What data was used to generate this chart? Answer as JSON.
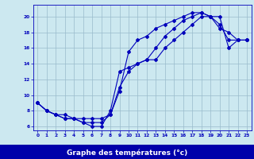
{
  "xlabel": "Graphe des températures (°c)",
  "bg_color": "#cce8f0",
  "plot_bg_color": "#cce8f0",
  "line_color": "#0000bb",
  "grid_color": "#99bbcc",
  "bottom_bar_color": "#0000aa",
  "bottom_text_color": "#ffffff",
  "axis_label_color": "#0000bb",
  "xlim": [
    -0.5,
    23.5
  ],
  "ylim": [
    5.5,
    21.5
  ],
  "xticks": [
    0,
    1,
    2,
    3,
    4,
    5,
    6,
    7,
    8,
    9,
    10,
    11,
    12,
    13,
    14,
    15,
    16,
    17,
    18,
    19,
    20,
    21,
    22,
    23
  ],
  "yticks": [
    6,
    8,
    10,
    12,
    14,
    16,
    18,
    20
  ],
  "series1_x": [
    0,
    1,
    2,
    3,
    4,
    5,
    6,
    7,
    8,
    9,
    10,
    11,
    12,
    13,
    14,
    15,
    16,
    17,
    18,
    19,
    20,
    21,
    22,
    23
  ],
  "series1_y": [
    9,
    8,
    7.5,
    7,
    7,
    6.5,
    6.5,
    6.5,
    7.5,
    10.5,
    15.5,
    17,
    17.5,
    18.5,
    19,
    19.5,
    20,
    20.5,
    20.5,
    20,
    18.5,
    18,
    17,
    17
  ],
  "series2_x": [
    0,
    1,
    2,
    3,
    4,
    5,
    6,
    7,
    8,
    9,
    10,
    11,
    12,
    13,
    14,
    15,
    16,
    17,
    18,
    19,
    20,
    21,
    22,
    23
  ],
  "series2_y": [
    9,
    8,
    7.5,
    7,
    7,
    6.5,
    6,
    6,
    8,
    13,
    13.5,
    14,
    14.5,
    16,
    17.5,
    18.5,
    19.5,
    20,
    20.5,
    20,
    19,
    17,
    17,
    17
  ],
  "series3_x": [
    0,
    1,
    2,
    3,
    4,
    5,
    6,
    7,
    8,
    9,
    10,
    11,
    12,
    13,
    14,
    15,
    16,
    17,
    18,
    19,
    20,
    21,
    22,
    23
  ],
  "series3_y": [
    9,
    8,
    7.5,
    7.5,
    7,
    7,
    7,
    7,
    7.5,
    11,
    13,
    14,
    14.5,
    14.5,
    16,
    17,
    18,
    19,
    20,
    20,
    20,
    16,
    17,
    17
  ]
}
